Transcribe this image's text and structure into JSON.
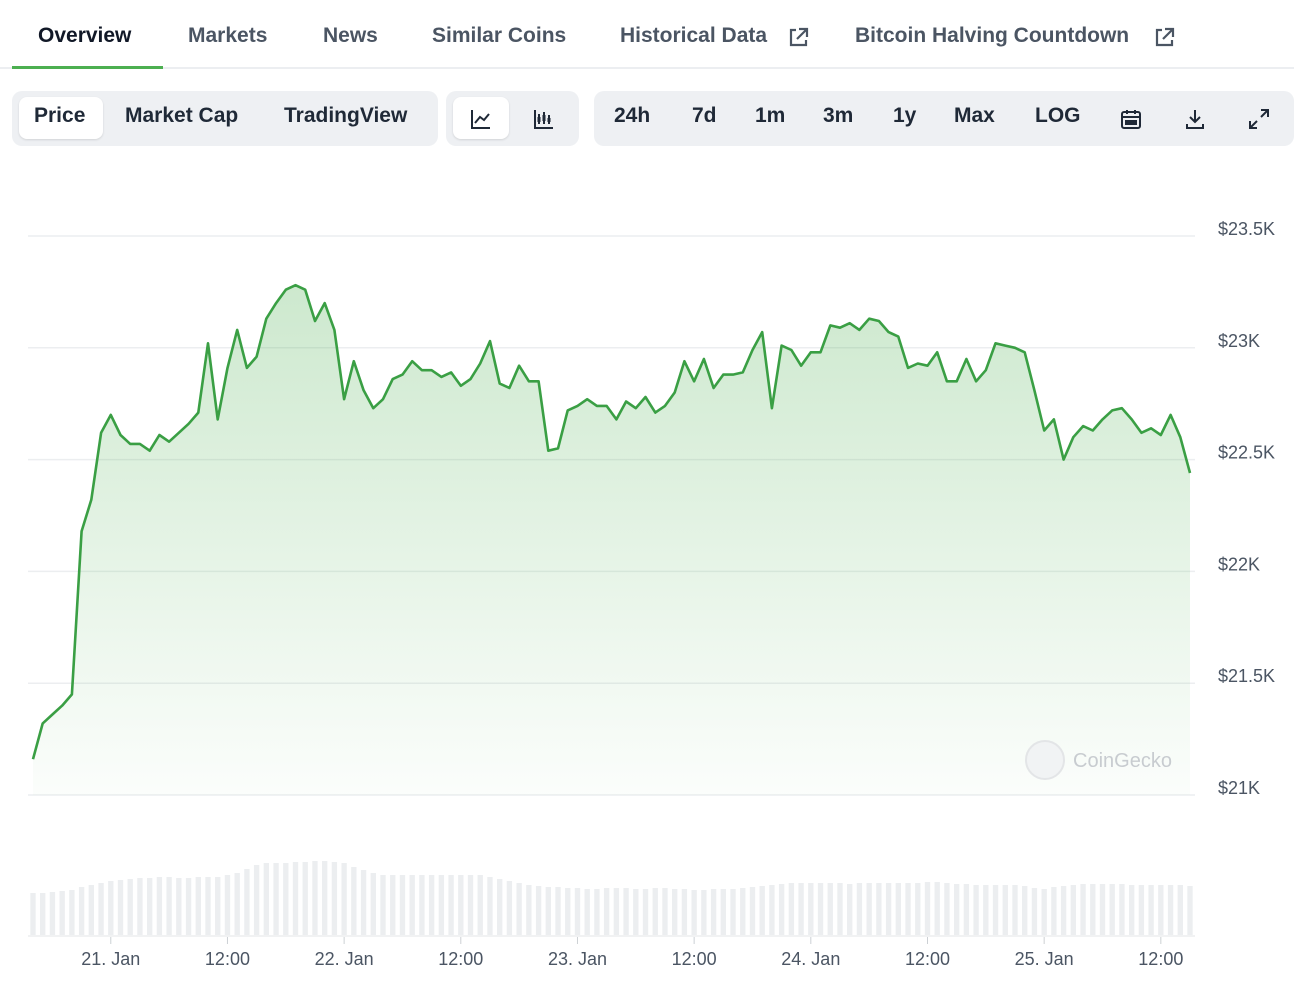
{
  "tabs": [
    "Overview",
    "Markets",
    "News",
    "Similar Coins",
    "Historical Data",
    "Bitcoin Halving Countdown"
  ],
  "chart_kind": [
    "Price",
    "Market Cap",
    "TradingView"
  ],
  "ranges": [
    "24h",
    "7d",
    "1m",
    "3m",
    "1y",
    "Max",
    "LOG"
  ],
  "chart_data": {
    "type": "line",
    "color": "#3a9f44",
    "grid": true,
    "watermark": "CoinGecko",
    "x": [
      16,
      17,
      18,
      19,
      20,
      21,
      22,
      23,
      24,
      25,
      26,
      27,
      28,
      29,
      30,
      31,
      32,
      33,
      34,
      35,
      36,
      37,
      38,
      39,
      40,
      41,
      42,
      43,
      44,
      45,
      46,
      47,
      48,
      49,
      50,
      51,
      52,
      53,
      54,
      55,
      56,
      57,
      58,
      59,
      60,
      61,
      62,
      63,
      64,
      65,
      66,
      67,
      68,
      69,
      70,
      71,
      72,
      73,
      74,
      75,
      76,
      77,
      78,
      79,
      80,
      81,
      82,
      83,
      84,
      85,
      86,
      87,
      88,
      89,
      90,
      91,
      92,
      93,
      94,
      95,
      96,
      97,
      98,
      99,
      100,
      101,
      102,
      103,
      104,
      105,
      106,
      107,
      108,
      109,
      110,
      111,
      112,
      113,
      114,
      115,
      116,
      117,
      118,
      119,
      120,
      121,
      122,
      123,
      124,
      125,
      126,
      127,
      128,
      129,
      130,
      131,
      132,
      133,
      134,
      135
    ],
    "values": [
      21160,
      21320,
      21360,
      21400,
      21450,
      22180,
      22320,
      22620,
      22700,
      22610,
      22570,
      22570,
      22540,
      22610,
      22580,
      22620,
      22660,
      22710,
      23020,
      22680,
      22910,
      23080,
      22910,
      22960,
      23130,
      23200,
      23260,
      23280,
      23260,
      23120,
      23200,
      23080,
      22770,
      22940,
      22810,
      22730,
      22770,
      22860,
      22880,
      22940,
      22900,
      22900,
      22870,
      22890,
      22830,
      22860,
      22930,
      23030,
      22840,
      22820,
      22920,
      22850,
      22850,
      22540,
      22550,
      22720,
      22740,
      22770,
      22740,
      22740,
      22680,
      22760,
      22730,
      22780,
      22710,
      22740,
      22800,
      22940,
      22850,
      22950,
      22820,
      22880,
      22880,
      22890,
      22990,
      23070,
      22730,
      23010,
      22990,
      22920,
      22980,
      22980,
      23100,
      23090,
      23110,
      23080,
      23130,
      23120,
      23070,
      23050,
      22910,
      22930,
      22920,
      22980,
      22850,
      22850,
      22950,
      22850,
      22900,
      23020,
      23010,
      23000,
      22980,
      22810,
      22630,
      22680,
      22500,
      22600,
      22650,
      22630,
      22680,
      22720,
      22730,
      22680,
      22620,
      22640,
      22610,
      22700,
      22600,
      22440
    ],
    "volume": [
      42,
      42,
      43,
      44,
      45,
      48,
      50,
      52,
      54,
      55,
      56,
      57,
      57,
      58,
      58,
      57,
      57,
      58,
      58,
      58,
      60,
      62,
      66,
      70,
      72,
      72,
      72,
      73,
      73,
      74,
      74,
      73,
      72,
      68,
      65,
      62,
      60,
      60,
      60,
      60,
      60,
      60,
      60,
      60,
      60,
      60,
      60,
      58,
      56,
      54,
      52,
      50,
      49,
      48,
      48,
      47,
      47,
      46,
      46,
      47,
      47,
      47,
      46,
      46,
      47,
      47,
      46,
      46,
      45,
      45,
      46,
      46,
      46,
      47,
      48,
      49,
      50,
      51,
      52,
      52,
      52,
      52,
      52,
      52,
      51,
      52,
      52,
      52,
      52,
      52,
      52,
      52,
      53,
      53,
      52,
      51,
      51,
      50,
      50,
      50,
      50,
      50,
      49,
      47,
      46,
      48,
      49,
      50,
      51,
      51,
      51,
      51,
      51,
      50,
      50,
      50,
      50,
      50,
      50,
      49
    ],
    "xlim": [
      16,
      135
    ],
    "xticks": [
      {
        "value": 24,
        "label": "21. Jan"
      },
      {
        "value": 36,
        "label": "12:00"
      },
      {
        "value": 48,
        "label": "22. Jan"
      },
      {
        "value": 60,
        "label": "12:00"
      },
      {
        "value": 72,
        "label": "23. Jan"
      },
      {
        "value": 84,
        "label": "12:00"
      },
      {
        "value": 96,
        "label": "24. Jan"
      },
      {
        "value": 108,
        "label": "12:00"
      },
      {
        "value": 120,
        "label": "25. Jan"
      },
      {
        "value": 132,
        "label": "12:00"
      }
    ],
    "ylim": [
      21000,
      23500
    ],
    "yticks": [
      {
        "value": 21000,
        "label": "$21K"
      },
      {
        "value": 21500,
        "label": "$21.5K"
      },
      {
        "value": 22000,
        "label": "$22K"
      },
      {
        "value": 22500,
        "label": "$22.5K"
      },
      {
        "value": 23000,
        "label": "$23K"
      },
      {
        "value": 23500,
        "label": "$23.5K"
      }
    ]
  }
}
